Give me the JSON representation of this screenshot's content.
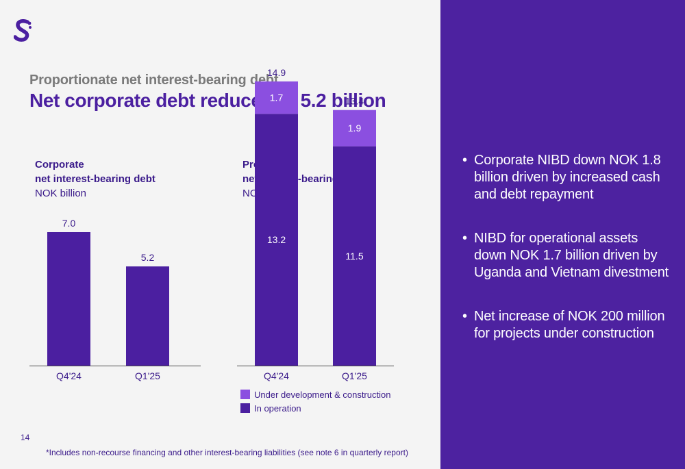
{
  "slide": {
    "kicker": "Proportionate net interest-bearing debt",
    "headline": "Net corporate debt reduced to 5.2 billion",
    "page_number": "14",
    "footnote": "*Includes non-recourse financing and other interest-bearing liabilities (see note 6 in quarterly report)"
  },
  "colors": {
    "primary_purple": "#4b1fa0",
    "light_purple": "#8b4fe0",
    "panel_purple": "#4d22a0",
    "background": "#f4f4f4"
  },
  "bullets": [
    "Corporate NIBD down NOK 1.8 billion driven by increased cash and debt repayment",
    "NIBD for operational assets down NOK 1.7 billion driven by Uganda and Vietnam divestment",
    "Net increase of NOK 200 million for projects under construction"
  ],
  "chart_data": [
    {
      "type": "bar",
      "title_line1": "Corporate",
      "title_line2": "net interest-bearing debt",
      "unit": "NOK billion",
      "categories": [
        "Q4'24",
        "Q1'25"
      ],
      "values": [
        7.0,
        5.2
      ],
      "value_labels": [
        "7.0",
        "5.2"
      ]
    },
    {
      "type": "bar",
      "stacked": true,
      "title_line1": "Project",
      "title_line2": "net interest-bearing debt*",
      "unit": "NOK billion",
      "categories": [
        "Q4'24",
        "Q1'25"
      ],
      "series": [
        {
          "name": "In operation",
          "values": [
            13.2,
            11.5
          ],
          "labels": [
            "13.2",
            "11.5"
          ],
          "color": "#4b1fa0"
        },
        {
          "name": "Under development & construction",
          "values": [
            1.7,
            1.9
          ],
          "labels": [
            "1.7",
            "1.9"
          ],
          "color": "#8b4fe0"
        }
      ],
      "totals": [
        14.9,
        13.4
      ],
      "total_labels": [
        "14.9",
        "13.4"
      ],
      "legend": [
        "Under development & construction",
        "In operation"
      ]
    }
  ]
}
